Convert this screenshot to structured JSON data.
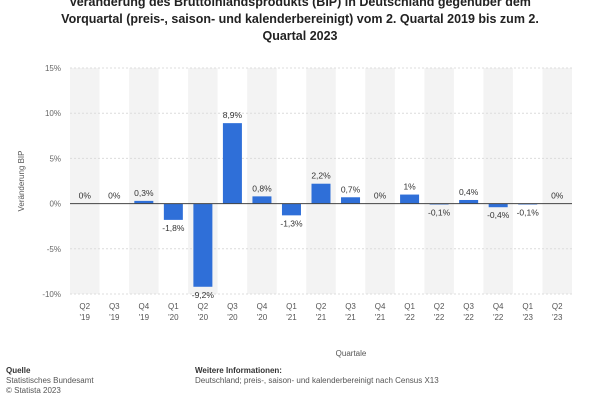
{
  "title": "Veränderung des Bruttoinlandsprodukts (BIP) in Deutschland gegenüber dem Vorquartal (preis-, saison- und kalenderbereinigt) vom 2. Quartal 2019 bis zum 2. Quartal 2023",
  "footer": {
    "source_heading": "Quelle",
    "source_text": "Statistisches Bundesamt",
    "copyright": "© Statista 2023",
    "info_heading": "Weitere Informationen:",
    "info_text": "Deutschland; preis-, saison- und kalenderbereinigt nach Census X13"
  },
  "chart_data": {
    "type": "bar",
    "title": "Veränderung des Bruttoinlandsprodukts (BIP) in Deutschland gegenüber dem Vorquartal (preis-, saison- und kalenderbereinigt) vom 2. Quartal 2019 bis zum 2. Quartal 2023",
    "xlabel": "Quartale",
    "ylabel": "Veränderung BIP",
    "ylim": [
      -10,
      15
    ],
    "yticks": [
      15,
      10,
      5,
      0,
      -5,
      -10
    ],
    "ytick_labels": [
      "15%",
      "10%",
      "5%",
      "0%",
      "-5%",
      "-10%"
    ],
    "categories": [
      [
        "Q2",
        "'19"
      ],
      [
        "Q3",
        "'19"
      ],
      [
        "Q4",
        "'19"
      ],
      [
        "Q1",
        "'20"
      ],
      [
        "Q2",
        "'20"
      ],
      [
        "Q3",
        "'20"
      ],
      [
        "Q4",
        "'20"
      ],
      [
        "Q1",
        "'21"
      ],
      [
        "Q2",
        "'21"
      ],
      [
        "Q3",
        "'21"
      ],
      [
        "Q4",
        "'21"
      ],
      [
        "Q1",
        "'22"
      ],
      [
        "Q2",
        "'22"
      ],
      [
        "Q3",
        "'22"
      ],
      [
        "Q4",
        "'22"
      ],
      [
        "Q1",
        "'23"
      ],
      [
        "Q2",
        "'23"
      ]
    ],
    "values": [
      0,
      0,
      0.3,
      -1.8,
      -9.2,
      8.9,
      0.8,
      -1.3,
      2.2,
      0.7,
      0,
      1,
      -0.1,
      0.4,
      -0.4,
      -0.1,
      0
    ],
    "data_labels": [
      "0%",
      "0%",
      "0,3%",
      "-1,8%",
      "-9,2%",
      "8,9%",
      "0,8%",
      "-1,3%",
      "2,2%",
      "0,7%",
      "0%",
      "1%",
      "-0,1%",
      "0,4%",
      "-0,4%",
      "-0,1%",
      "0%"
    ],
    "colors": {
      "bar": "#2f6fd8",
      "band": "#f3f3f3",
      "grid": "#dcdcdc",
      "zero": "#444444"
    },
    "grid": true,
    "legend": "none"
  }
}
